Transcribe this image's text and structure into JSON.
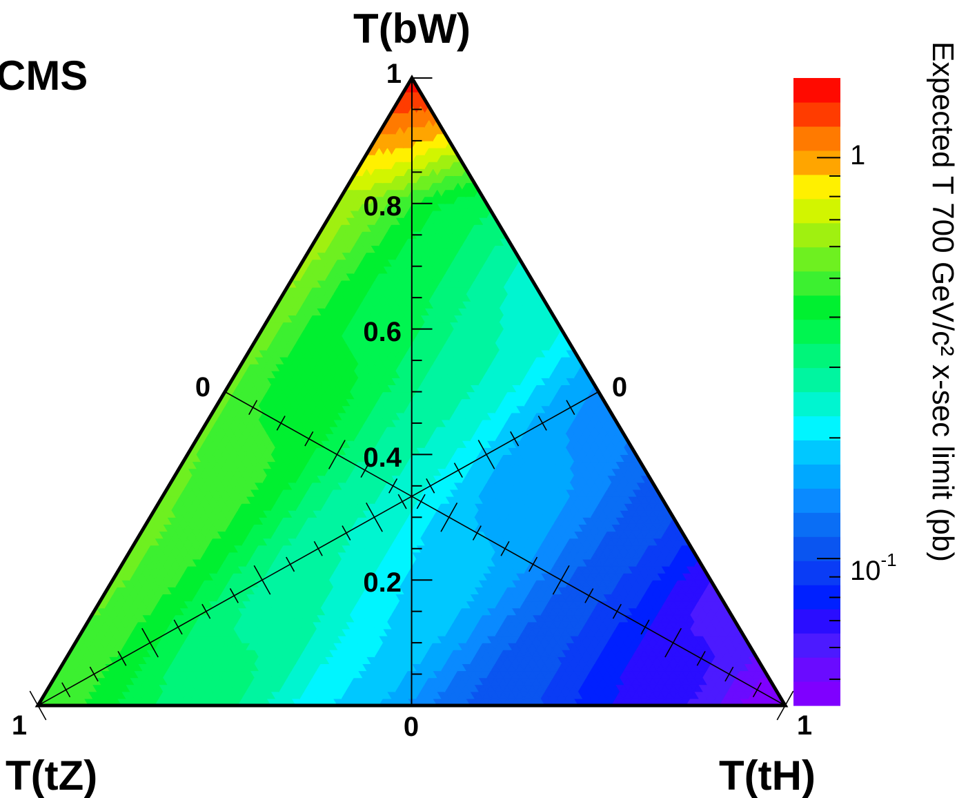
{
  "chart_data": {
    "type": "heatmap",
    "experiment_label": "CMS",
    "vertex_labels": {
      "top": "T(bW)",
      "left": "T(tZ)",
      "right": "T(tH)"
    },
    "axis_tick_labels": {
      "bw_axis": [
        "0.2",
        "0.4",
        "0.6",
        "0.8",
        "1"
      ],
      "base_center": "0",
      "left_corner": "1",
      "right_corner": "1",
      "left_edge_mid": "0",
      "right_edge_mid": "0"
    },
    "colorbar": {
      "label": "Expected T 700 GeV/c² x-sec limit (pb)",
      "scale": "log",
      "range": [
        0.043,
        1.58
      ],
      "tick_labels": [
        {
          "value": 1,
          "text": "1"
        },
        {
          "value": 0.1,
          "base": "10",
          "exp": "-1"
        }
      ],
      "levels": [
        {
          "color": "#7f00ff"
        },
        {
          "color": "#6a0bff"
        },
        {
          "color": "#4c1aff"
        },
        {
          "color": "#2a0dff"
        },
        {
          "color": "#0020ff"
        },
        {
          "color": "#0a3cf5"
        },
        {
          "color": "#0a55f0"
        },
        {
          "color": "#0a6ef5"
        },
        {
          "color": "#0a8aff"
        },
        {
          "color": "#00a8ff"
        },
        {
          "color": "#00c8ff"
        },
        {
          "color": "#00f5ff"
        },
        {
          "color": "#00f5d0"
        },
        {
          "color": "#00f5a0"
        },
        {
          "color": "#00f57a"
        },
        {
          "color": "#00f550"
        },
        {
          "color": "#00f030"
        },
        {
          "color": "#3cf030"
        },
        {
          "color": "#6ef020"
        },
        {
          "color": "#a0f010"
        },
        {
          "color": "#d2f500"
        },
        {
          "color": "#fff000"
        },
        {
          "color": "#ffa500"
        },
        {
          "color": "#ff7a00"
        },
        {
          "color": "#ff3c00"
        },
        {
          "color": "#ff0a00"
        }
      ]
    },
    "contour_values_pb": {
      "bW_1.0": 1.5,
      "bW_0.9": 0.9,
      "bW_0.8": 0.55,
      "bW_0.6": 0.33,
      "bW_0.4": 0.22,
      "bW_0.2": 0.13,
      "tZ_corner": 0.45,
      "tH_corner": 0.05,
      "center": 0.15
    }
  }
}
